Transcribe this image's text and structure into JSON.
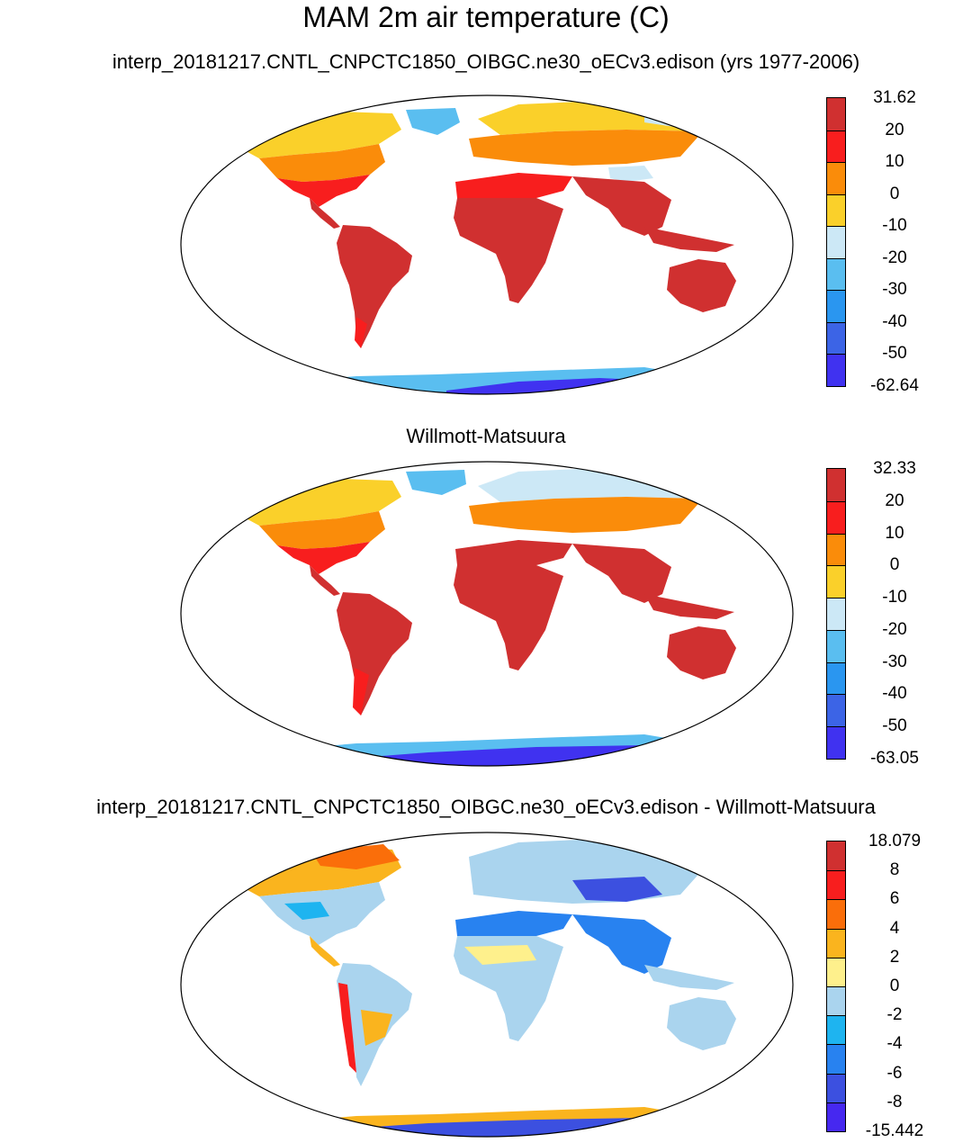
{
  "title": "MAM 2m air temperature (C)",
  "panels": [
    {
      "id": "model",
      "title": "interp_20181217.CNTL_CNPCTC1850_OIBGC.ne30_oECv3.edison (yrs 1977-2006)",
      "colorbar": {
        "labels": [
          "31.62",
          "20",
          "10",
          "0",
          "-10",
          "-20",
          "-30",
          "-40",
          "-50",
          "-62.64"
        ],
        "colors": [
          "#d03030",
          "#f81e1e",
          "#fa8c0a",
          "#fad02a",
          "#cce8f6",
          "#5abef0",
          "#2a96f0",
          "#3c64e6",
          "#4032f0"
        ]
      }
    },
    {
      "id": "obs",
      "title": "Willmott-Matsuura",
      "colorbar": {
        "labels": [
          "32.33",
          "20",
          "10",
          "0",
          "-10",
          "-20",
          "-30",
          "-40",
          "-50",
          "-63.05"
        ],
        "colors": [
          "#d03030",
          "#f81e1e",
          "#fa8c0a",
          "#fad02a",
          "#cce8f6",
          "#5abef0",
          "#2a96f0",
          "#3c64e6",
          "#4032f0"
        ]
      }
    },
    {
      "id": "diff",
      "title": "interp_20181217.CNTL_CNPCTC1850_OIBGC.ne30_oECv3.edison - Willmott-Matsuura",
      "colorbar": {
        "labels": [
          "18.079",
          "8",
          "6",
          "4",
          "2",
          "0",
          "-2",
          "-4",
          "-6",
          "-8",
          "-15.442"
        ],
        "colors": [
          "#d03030",
          "#f81e1e",
          "#fa6e0a",
          "#fab41e",
          "#fef08c",
          "#aad4ee",
          "#1eb4f0",
          "#2882f0",
          "#3c50e0",
          "#4628f0"
        ]
      }
    }
  ]
}
